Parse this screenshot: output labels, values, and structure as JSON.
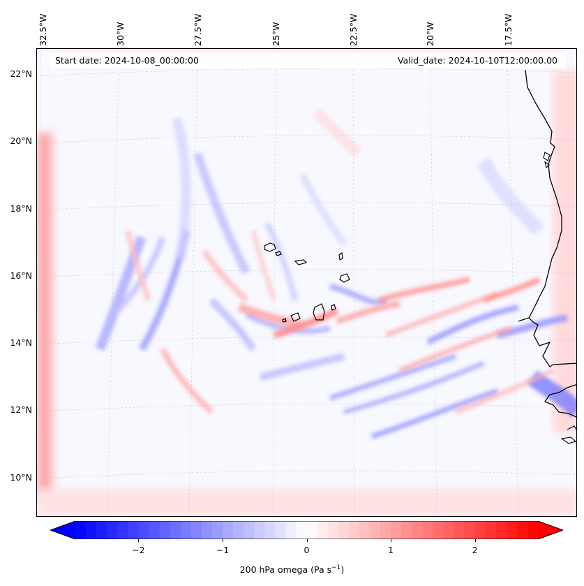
{
  "map": {
    "start_date": "Start date: 2024-10-08_00:00:00",
    "valid_date": "Valid_date: 2024-10-10T12:00:00.00",
    "variable": "200 hPa omega",
    "units": "Pa s",
    "units_exponent": "−1",
    "lon_labels": [
      "32.5°W",
      "30°W",
      "27.5°W",
      "25°W",
      "22.5°W",
      "20°W",
      "17.5°W"
    ],
    "lat_labels": [
      "22°N",
      "20°N",
      "18°N",
      "16°N",
      "14°N",
      "12°N",
      "10°N"
    ],
    "colorbar": {
      "min": -2.75,
      "max": 2.75,
      "ticks": [
        -2,
        -1,
        0,
        1,
        2
      ],
      "tick_labels": [
        "−2",
        "−1",
        "0",
        "1",
        "2"
      ],
      "low_color": "#0000ff",
      "mid_color": "#ffffff",
      "high_color": "#ff0000"
    }
  }
}
